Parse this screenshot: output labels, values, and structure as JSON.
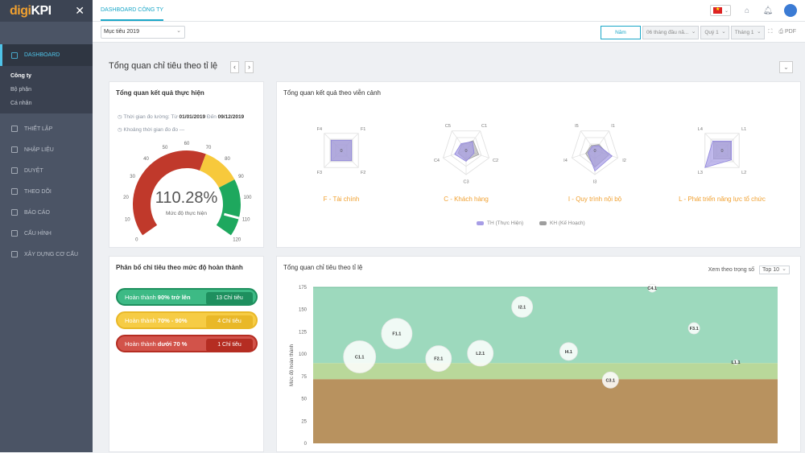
{
  "app": {
    "logo_prefix": "digi",
    "logo_suffix": "KPI"
  },
  "sidebar": {
    "active": "DASHBOARD",
    "sub": [
      {
        "label": "Công ty"
      },
      {
        "label": "Bộ phận"
      },
      {
        "label": "Cá nhân"
      }
    ],
    "items": [
      {
        "label": "THIẾT LẬP"
      },
      {
        "label": "NHẬP LIỆU"
      },
      {
        "label": "DUYỆT"
      },
      {
        "label": "THEO DÕI"
      },
      {
        "label": "BÁO CÁO"
      },
      {
        "label": "CẤU HÌNH"
      },
      {
        "label": "XÂY DỰNG CƠ CẤU"
      }
    ]
  },
  "topbar": {
    "tab": "DASHBOARD CÔNG TY"
  },
  "filters": {
    "target": "Mục tiêu 2019",
    "period_type": "Năm",
    "range": "06 tháng đầu nă...",
    "quarter": "Quý 1",
    "month": "Tháng 1",
    "pdf": "PDF"
  },
  "section": {
    "title": "Tổng quan chỉ tiêu theo tỉ lệ"
  },
  "gauge_card": {
    "title": "Tổng quan kết quả thực hiện",
    "period_prefix": "Thời gian đo lường: Từ",
    "from": "01/01/2019",
    "to_word": "Đến",
    "to": "09/12/2019",
    "no_period": "Khoảng thời gian đo đo ---",
    "value": "110.28%",
    "sub": "Mức độ thực hiện",
    "gauge_fraction": 0.919,
    "ticks": [
      "0",
      "10",
      "20",
      "30",
      "40",
      "50",
      "60",
      "70",
      "80",
      "90",
      "100",
      "110",
      "120"
    ]
  },
  "dist_card": {
    "title": "Phân bổ chỉ tiêu theo mức độ hoàn thành",
    "rows": [
      {
        "prefix": "Hoàn thành",
        "bold": "90% trở lên",
        "count": "13 Chỉ tiêu",
        "color": "#3dba85",
        "dark": "#1e8f5e"
      },
      {
        "prefix": "Hoàn thành",
        "bold": "70% - 90%",
        "count": "4 Chỉ tiêu",
        "color": "#f6cc45",
        "dark": "#e9b828"
      },
      {
        "prefix": "Hoàn thành",
        "bold": "dưới 70 %",
        "count": "1 Chỉ tiêu",
        "color": "#d2534a",
        "dark": "#b52d22"
      }
    ]
  },
  "radar_card": {
    "title": "Tổng quan kết quả theo viễn cảnh",
    "charts": [
      {
        "label": "F - Tài chính",
        "axes": [
          "F1",
          "F2",
          "F3",
          "F4"
        ],
        "th": [
          0.6,
          0.6,
          0.6,
          0.6
        ],
        "kh": [
          0.6,
          0.6,
          0.6,
          0.6
        ],
        "center": "0"
      },
      {
        "label": "C - Khách hàng",
        "axes": [
          "C1",
          "C2",
          "C3",
          "C4",
          "C5"
        ],
        "th": [
          0.45,
          0.35,
          0.45,
          0.5,
          0.35
        ],
        "kh": [
          0.5,
          0.55,
          0.4,
          0.35,
          0.3
        ],
        "center": "0"
      },
      {
        "label": "I - Quy trình nội bộ",
        "axes": [
          "I1",
          "I2",
          "I3",
          "I4",
          "I5"
        ],
        "th": [
          0.25,
          0.75,
          0.85,
          0.3,
          0.2
        ],
        "kh": [
          0.3,
          0.6,
          0.7,
          0.4,
          0.25
        ],
        "center": "0"
      },
      {
        "label": "L - Phát triển năng lực tổ chức",
        "axes": [
          "L1",
          "L2",
          "L3",
          "L4"
        ],
        "th": [
          0.55,
          0.55,
          1.0,
          0.55
        ],
        "kh": [
          0.5,
          0.5,
          0.5,
          0.5
        ],
        "center": "0"
      }
    ],
    "legend": [
      {
        "name": "TH (Thực Hiện)",
        "color": "#a79de6"
      },
      {
        "name": "KH (Kế Hoạch)",
        "color": "#9e9e9e"
      }
    ]
  },
  "bubble_card": {
    "title": "Tổng quan chỉ tiêu theo tỉ lệ",
    "sort_label": "Xem theo trọng số",
    "sort_value": "Top 10"
  },
  "chart_data": {
    "type": "scatter",
    "ylabel": "Mức độ hoàn thành",
    "ylim": [
      0,
      175
    ],
    "yticks": [
      0,
      25,
      50,
      75,
      100,
      125,
      150,
      175
    ],
    "bands": [
      {
        "from": 0,
        "to": 72,
        "color": "#b8925f"
      },
      {
        "from": 72,
        "to": 90,
        "color": "#b9d89a"
      },
      {
        "from": 90,
        "to": 175,
        "color": "#9dd9bd"
      }
    ],
    "points": [
      {
        "name": "C1.1",
        "x": 0.1,
        "y": 97,
        "size": 20
      },
      {
        "name": "F1.1",
        "x": 0.18,
        "y": 123,
        "size": 19
      },
      {
        "name": "F2.1",
        "x": 0.27,
        "y": 95,
        "size": 16
      },
      {
        "name": "L2.1",
        "x": 0.36,
        "y": 101,
        "size": 16
      },
      {
        "name": "I2.1",
        "x": 0.45,
        "y": 153,
        "size": 13
      },
      {
        "name": "I4.1",
        "x": 0.55,
        "y": 103,
        "size": 11
      },
      {
        "name": "C3.1",
        "x": 0.64,
        "y": 71,
        "size": 10
      },
      {
        "name": "C4.1",
        "x": 0.73,
        "y": 174,
        "size": 5
      },
      {
        "name": "F3.1",
        "x": 0.82,
        "y": 129,
        "size": 7
      },
      {
        "name": "L1.1",
        "x": 0.91,
        "y": 91,
        "size": 3
      }
    ]
  }
}
